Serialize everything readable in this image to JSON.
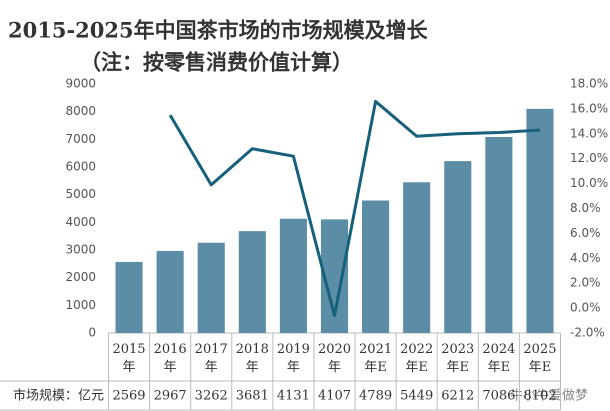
{
  "chart_data": {
    "type": "bar-line",
    "title": "2015-2025年中国茶市场的市场规模及增长",
    "subtitle": "（注：按零售消费价值计算）",
    "categories": [
      "2015年",
      "2016年",
      "2017年",
      "2018年",
      "2019年",
      "2020年",
      "2021年E",
      "2022年E",
      "2023年E",
      "2024年E",
      "2025年E"
    ],
    "series": [
      {
        "type": "bar",
        "color": "#5b8ea6",
        "values": [
          2569,
          2967,
          3262,
          3681,
          4131,
          4107,
          4789,
          5449,
          6212,
          7086,
          8102
        ]
      },
      {
        "type": "line",
        "color": "#17607c",
        "axis": "y2",
        "values": [
          null,
          15.5,
          9.9,
          12.8,
          12.2,
          -0.6,
          16.6,
          13.8,
          14.0,
          14.1,
          14.3
        ]
      }
    ],
    "table_row_label": "市场规模：亿元",
    "ylim": [
      0,
      9000
    ],
    "yticks": [
      0,
      1000,
      2000,
      3000,
      4000,
      5000,
      6000,
      7000,
      8000,
      9000
    ],
    "y2lim": [
      -2,
      18
    ],
    "y2ticks": [
      {
        "value": -2,
        "label": "-2.0%"
      },
      {
        "value": 0,
        "label": "0.0%"
      },
      {
        "value": 2,
        "label": "2.0%"
      },
      {
        "value": 4,
        "label": "4.0%"
      },
      {
        "value": 6,
        "label": "6.0%"
      },
      {
        "value": 8,
        "label": "8.0%"
      },
      {
        "value": 10,
        "label": "10.0%"
      },
      {
        "value": 12,
        "label": "12.0%"
      },
      {
        "value": 14,
        "label": "14.0%"
      },
      {
        "value": 16,
        "label": "16.0%"
      },
      {
        "value": 18,
        "label": "18.0%"
      }
    ],
    "grid": false,
    "watermark": "牛小牛爱做梦"
  }
}
